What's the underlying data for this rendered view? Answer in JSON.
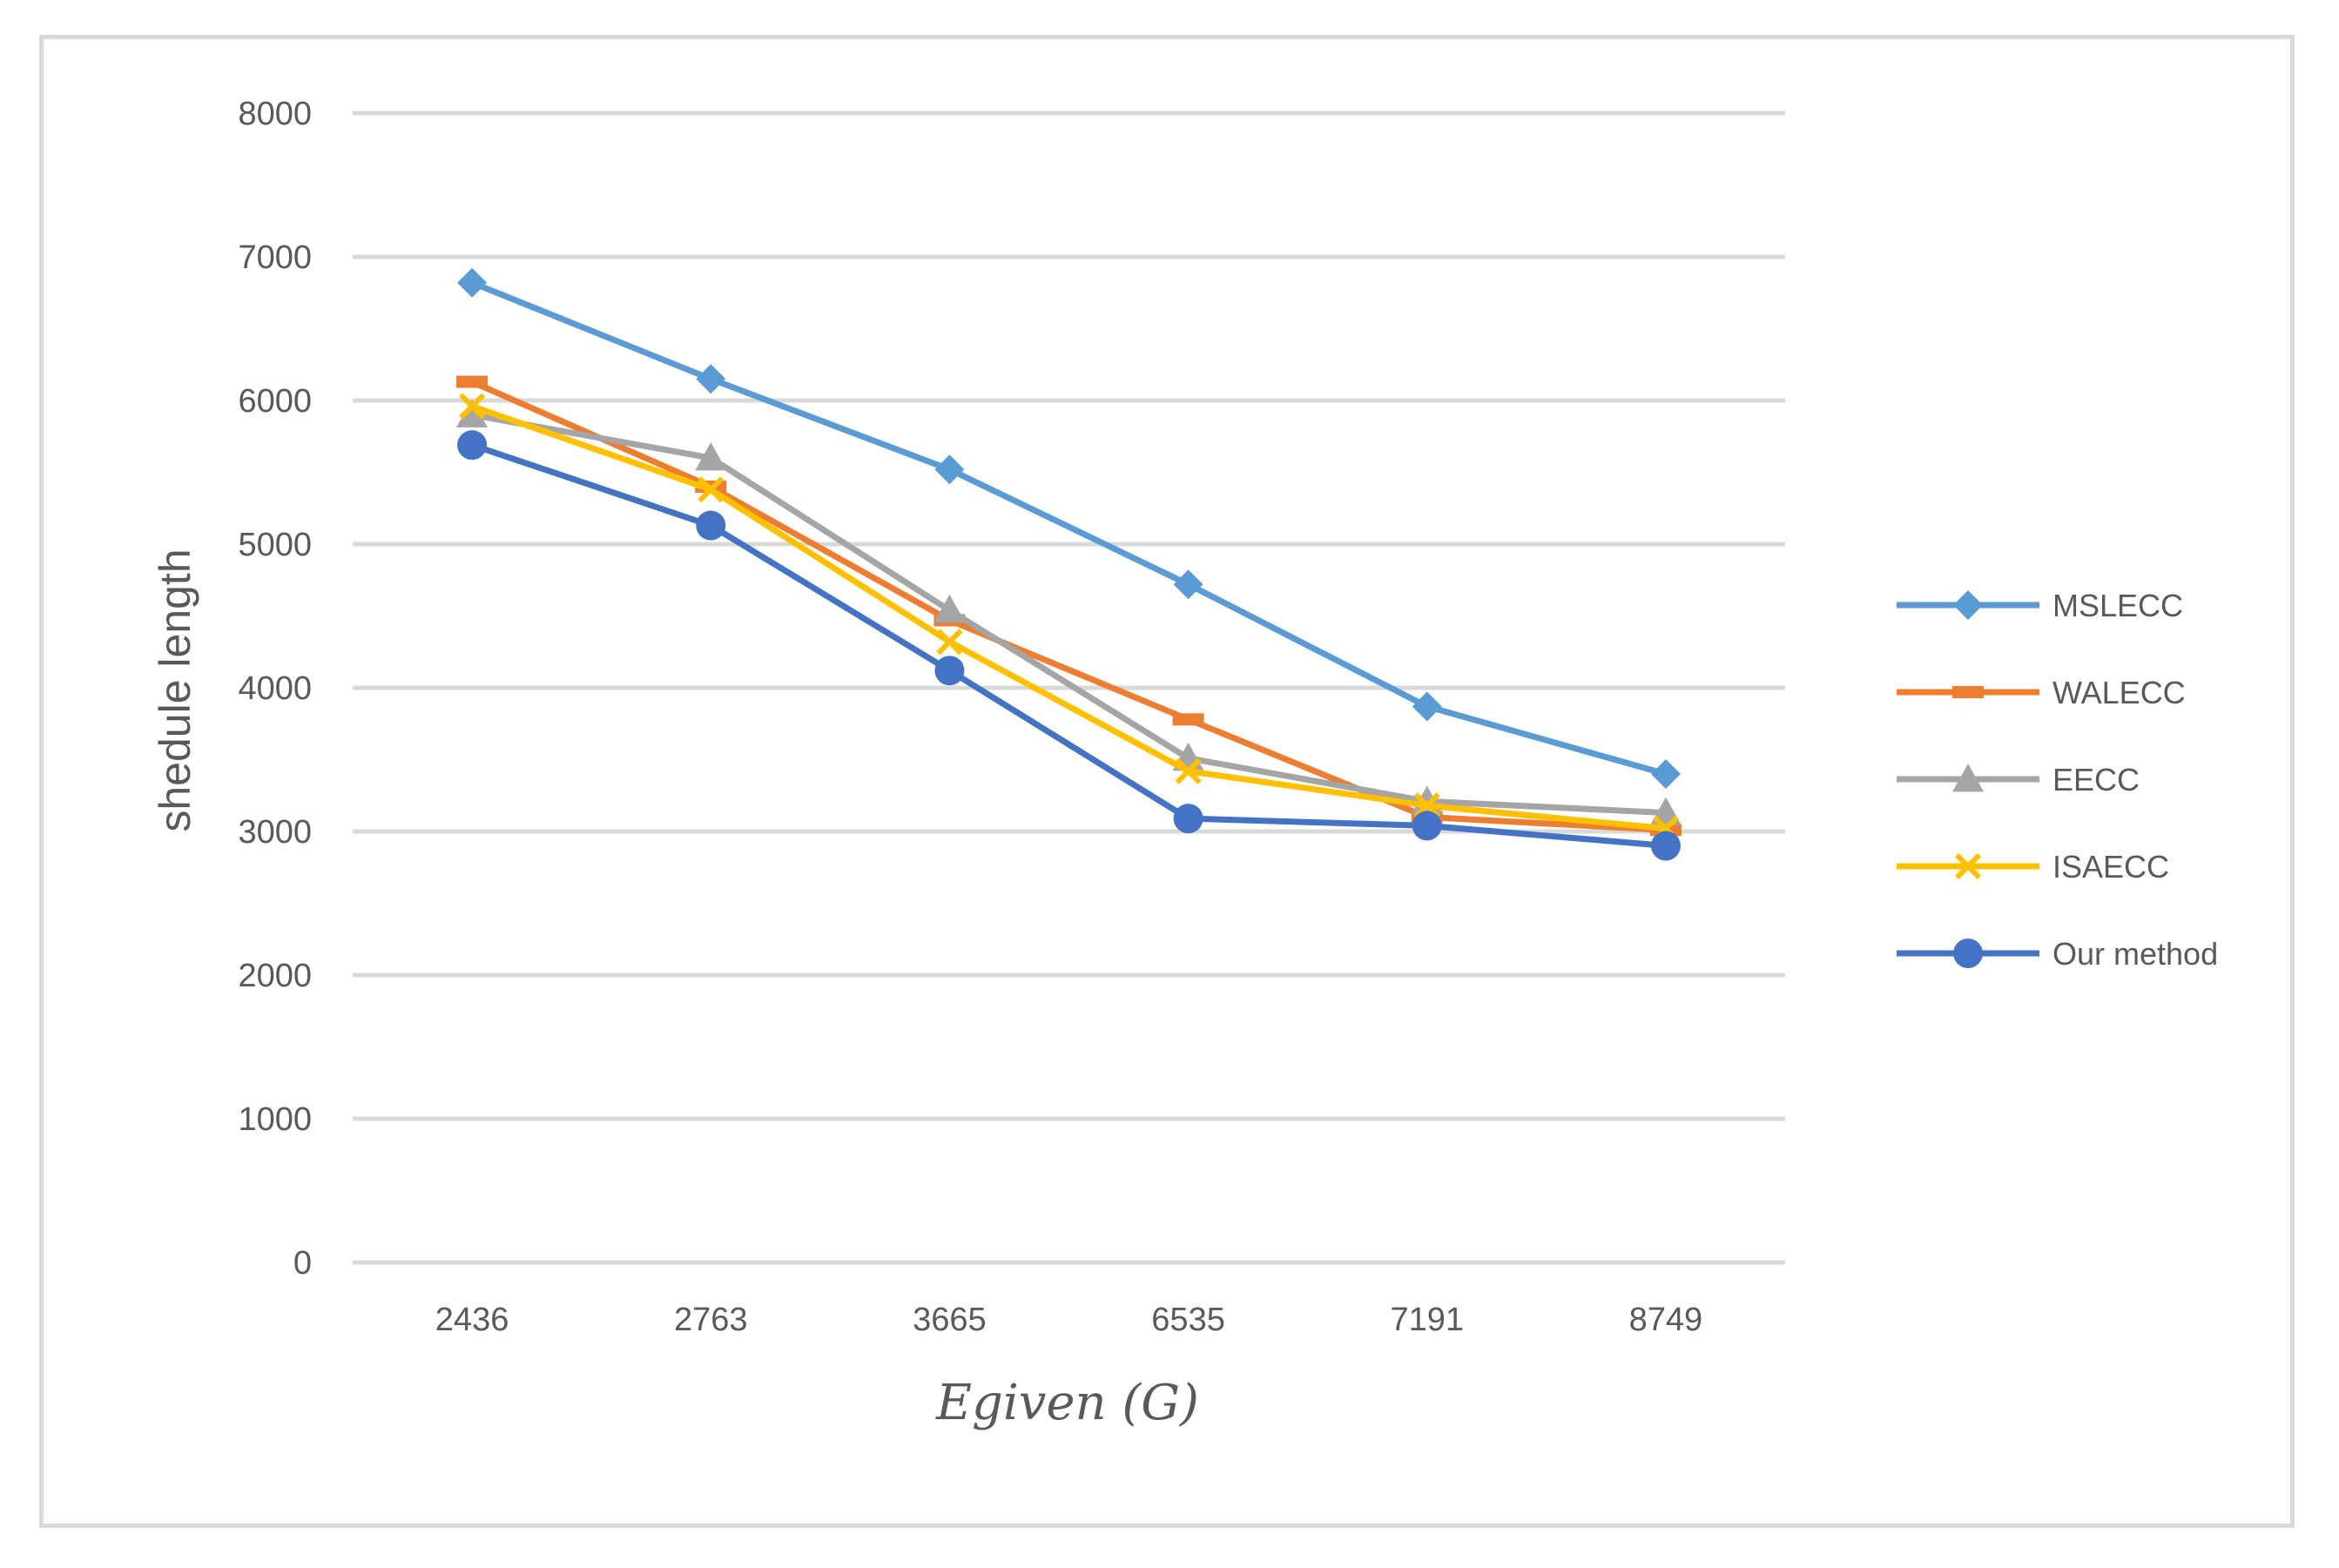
{
  "chart_data": {
    "type": "line",
    "categories": [
      "2436",
      "2763",
      "3665",
      "6535",
      "7191",
      "8749"
    ],
    "xlabel": "Egiven (G)",
    "ylabel": "shedule length",
    "ylim": [
      0,
      8000
    ],
    "yticks": [
      0,
      1000,
      2000,
      3000,
      4000,
      5000,
      6000,
      7000,
      8000
    ],
    "grid": true,
    "legend_position": "right",
    "series": [
      {
        "name": "MSLECC",
        "values": [
          6820,
          6150,
          5520,
          4720,
          3870,
          3400
        ],
        "color": "#5B9BD5",
        "marker": "diamond"
      },
      {
        "name": "WALECC",
        "values": [
          6130,
          5400,
          4470,
          3780,
          3100,
          3010
        ],
        "color": "#ED7D31",
        "marker": "square"
      },
      {
        "name": "EECC",
        "values": [
          5900,
          5600,
          4540,
          3510,
          3210,
          3130
        ],
        "color": "#A5A5A5",
        "marker": "triangle"
      },
      {
        "name": "ISAECC",
        "values": [
          5960,
          5380,
          4320,
          3420,
          3180,
          3020
        ],
        "color": "#FFC000",
        "marker": "x"
      },
      {
        "name": "Our method",
        "values": [
          5690,
          5130,
          4120,
          3090,
          3040,
          2900
        ],
        "color": "#4472C4",
        "marker": "circle"
      }
    ]
  }
}
